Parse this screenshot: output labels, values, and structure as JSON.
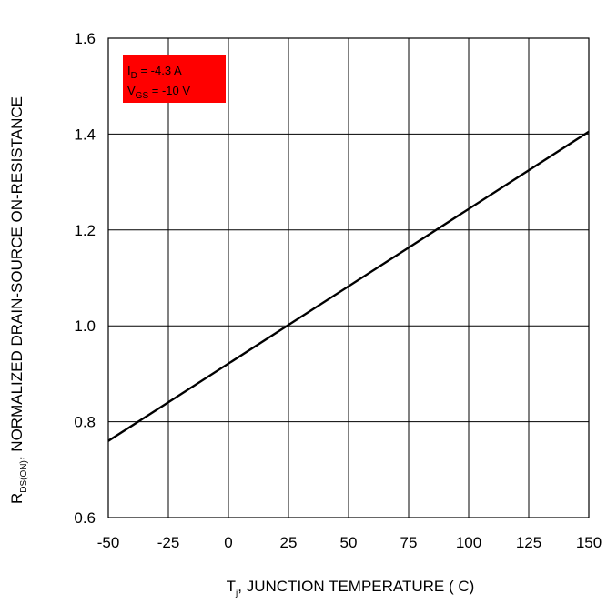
{
  "chart_data": {
    "type": "line",
    "xlabel": {
      "main": "T",
      "sub": "j",
      "rest": ", JUNCTION TEMPERATURE ( C)"
    },
    "ylabel": {
      "main": "R",
      "sub": "DS(ON)",
      "rest": ", NORMALIZED DRAIN-SOURCE ON-RESISTANCE"
    },
    "xlim": [
      -50,
      150
    ],
    "ylim": [
      0.6,
      1.6
    ],
    "xticks": [
      -50,
      -25,
      0,
      25,
      50,
      75,
      100,
      125,
      150
    ],
    "xtick_labels": [
      "-50",
      "-25",
      "0",
      "25",
      "50",
      "75",
      "100",
      "125",
      "150"
    ],
    "yticks": [
      0.6,
      0.8,
      1.0,
      1.2,
      1.4,
      1.6
    ],
    "ytick_labels": [
      "0.6",
      "0.8",
      "1.0",
      "1.2",
      "1.4",
      "1.6"
    ],
    "grid": true,
    "series": [
      {
        "x": [
          -50,
          150
        ],
        "y": [
          0.76,
          1.405
        ],
        "color": "#000000"
      }
    ],
    "legend_box": {
      "color": "#ff0000",
      "placement": "top-left",
      "lines": [
        {
          "main": "I",
          "sub": "D",
          "rest": " = -4.3 A"
        },
        {
          "main": "V",
          "sub": "GS",
          "rest": " = -10 V"
        }
      ]
    }
  }
}
